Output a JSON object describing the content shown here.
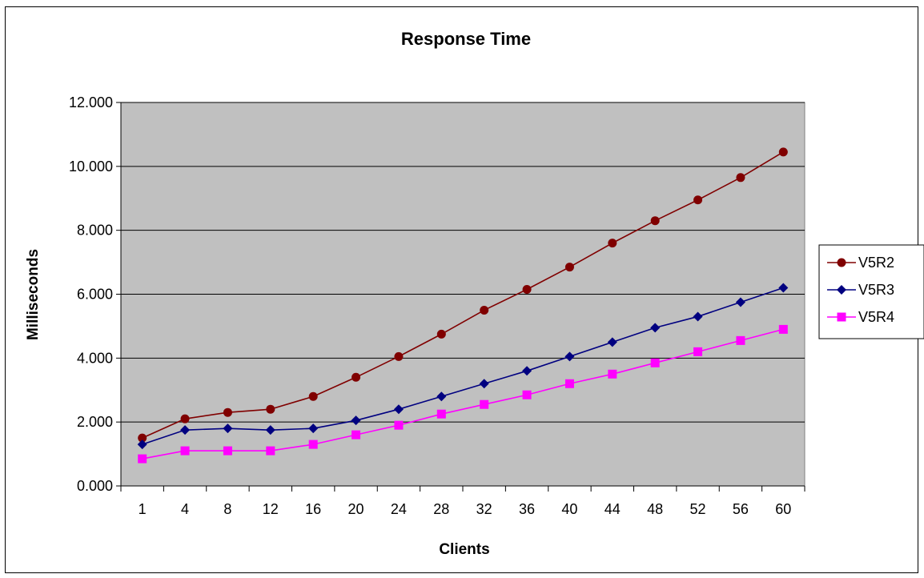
{
  "chart_data": {
    "type": "line",
    "title": "Response Time",
    "xlabel": "Clients",
    "ylabel": "Milliseconds",
    "categories": [
      "1",
      "4",
      "8",
      "12",
      "16",
      "20",
      "24",
      "28",
      "32",
      "36",
      "40",
      "44",
      "48",
      "52",
      "56",
      "60"
    ],
    "y_ticks": [
      "0.000",
      "2.000",
      "4.000",
      "6.000",
      "8.000",
      "10.000",
      "12.000"
    ],
    "ylim": [
      0,
      12
    ],
    "grid": "horizontal",
    "legend_position": "right",
    "plot_background": "#c0c0c0",
    "series": [
      {
        "name": "V5R2",
        "marker": "circle",
        "color": "#800000",
        "values": [
          1.5,
          2.1,
          2.3,
          2.4,
          2.8,
          3.4,
          4.05,
          4.75,
          5.5,
          6.15,
          6.85,
          7.6,
          8.3,
          8.95,
          9.65,
          10.45
        ]
      },
      {
        "name": "V5R3",
        "marker": "diamond",
        "color": "#000080",
        "values": [
          1.3,
          1.75,
          1.8,
          1.75,
          1.8,
          2.05,
          2.4,
          2.8,
          3.2,
          3.6,
          4.05,
          4.5,
          4.95,
          5.3,
          5.75,
          6.2
        ]
      },
      {
        "name": "V5R4",
        "marker": "square",
        "color": "#ff00ff",
        "values": [
          0.85,
          1.1,
          1.1,
          1.1,
          1.3,
          1.6,
          1.9,
          2.25,
          2.55,
          2.85,
          3.2,
          3.5,
          3.85,
          4.2,
          4.55,
          4.9
        ]
      }
    ]
  }
}
